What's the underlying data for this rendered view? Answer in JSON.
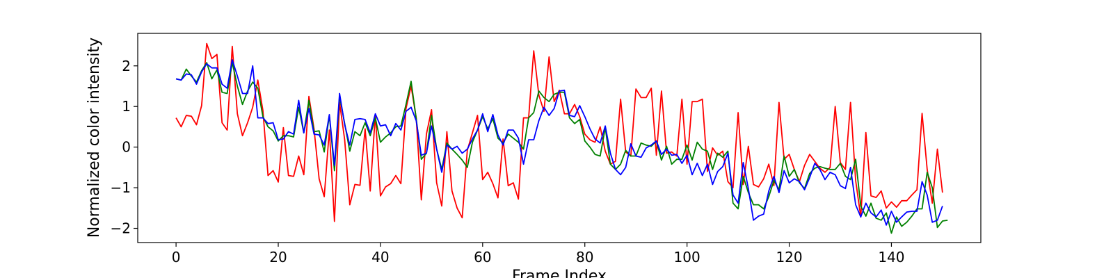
{
  "chart_data": {
    "type": "line",
    "title": "",
    "xlabel": "Frame Index",
    "ylabel": "Normalized color intensity",
    "xlim": [
      -7.5,
      157.5
    ],
    "ylim": [
      -2.35,
      2.8
    ],
    "xticks": [
      0,
      20,
      40,
      60,
      80,
      100,
      120,
      140
    ],
    "yticks": [
      -2,
      -1,
      0,
      1,
      2
    ],
    "grid": false,
    "legend": false,
    "series": [
      {
        "color": "#ff0000",
        "values": [
          0.72,
          0.5,
          0.78,
          0.76,
          0.55,
          1.02,
          2.55,
          2.18,
          2.28,
          0.6,
          0.42,
          2.48,
          0.82,
          0.28,
          0.6,
          0.98,
          1.65,
          0.9,
          -0.7,
          -0.58,
          -0.86,
          0.48,
          -0.7,
          -0.72,
          -0.22,
          -0.68,
          1.25,
          0.45,
          -0.78,
          -1.22,
          0.42,
          -1.83,
          1.1,
          0.18,
          -1.42,
          -0.92,
          -0.94,
          0.45,
          -1.08,
          0.8,
          -1.2,
          -0.98,
          -0.9,
          -0.7,
          -0.9,
          0.95,
          1.5,
          0.72,
          -1.3,
          0.32,
          0.92,
          -0.88,
          -1.45,
          0.38,
          -1.08,
          -1.5,
          -1.74,
          -0.08,
          0.35,
          0.78,
          -0.8,
          -0.62,
          -0.9,
          -1.25,
          0.2,
          -0.95,
          -0.88,
          -1.28,
          0.72,
          0.72,
          2.37,
          1.28,
          0.88,
          2.22,
          1.12,
          1.4,
          0.82,
          0.82,
          1.05,
          0.75,
          0.32,
          0.18,
          0.12,
          0.5,
          -0.1,
          -0.42,
          -0.35,
          1.18,
          -0.12,
          -0.22,
          1.43,
          1.22,
          1.22,
          1.45,
          -0.2,
          1.38,
          -0.15,
          -0.12,
          -0.22,
          1.18,
          -0.42,
          1.12,
          1.12,
          1.18,
          -0.6,
          -0.02,
          -0.2,
          -0.1,
          -0.85,
          -1.0,
          0.85,
          -0.92,
          0.02,
          -0.92,
          -0.98,
          -0.78,
          -0.42,
          -0.95,
          1.1,
          -0.3,
          -0.18,
          -0.55,
          -0.85,
          -0.45,
          -0.18,
          -0.35,
          -0.52,
          -0.62,
          -0.5,
          1.0,
          -0.38,
          -0.55,
          1.1,
          -0.82,
          -1.72,
          0.36,
          -1.2,
          -1.24,
          -1.08,
          -1.5,
          -1.35,
          -1.48,
          -1.32,
          -1.32,
          -1.18,
          -1.05,
          0.83,
          -0.55,
          -1.38,
          -0.05,
          -1.12
        ]
      },
      {
        "color": "#008000",
        "values": [
          1.68,
          1.65,
          1.92,
          1.75,
          1.6,
          1.88,
          2.08,
          1.68,
          1.9,
          1.35,
          1.32,
          2.08,
          1.5,
          1.05,
          1.38,
          1.6,
          1.45,
          0.75,
          0.5,
          0.4,
          0.15,
          0.28,
          0.28,
          0.25,
          0.98,
          0.35,
          1.15,
          0.38,
          0.4,
          -0.12,
          0.78,
          -0.58,
          1.25,
          0.58,
          -0.1,
          0.38,
          0.28,
          0.6,
          0.28,
          0.72,
          0.12,
          0.25,
          0.35,
          0.5,
          0.52,
          1.05,
          1.62,
          0.7,
          -0.3,
          -0.15,
          0.78,
          -0.05,
          -0.55,
          0.1,
          -0.05,
          -0.18,
          -0.32,
          -0.5,
          0.12,
          0.42,
          0.75,
          0.45,
          0.7,
          0.22,
          0.1,
          0.32,
          0.22,
          0.12,
          -0.05,
          0.72,
          0.85,
          1.38,
          1.22,
          1.12,
          1.3,
          1.35,
          1.35,
          0.72,
          0.58,
          0.68,
          0.15,
          0.0,
          -0.18,
          -0.22,
          0.48,
          -0.42,
          -0.55,
          -0.42,
          -0.08,
          -0.22,
          -0.22,
          0.1,
          0.05,
          0.02,
          0.15,
          -0.32,
          0.02,
          -0.42,
          -0.3,
          -0.3,
          0.05,
          -0.32,
          0.12,
          -0.05,
          -0.1,
          -0.55,
          -0.15,
          -0.25,
          -0.1,
          -1.38,
          -1.52,
          -0.72,
          -1.12,
          -1.42,
          -1.42,
          -1.52,
          -1.22,
          -0.82,
          -1.05,
          -0.22,
          -0.72,
          -0.55,
          -0.88,
          -1.02,
          -0.65,
          -0.52,
          -0.48,
          -0.52,
          -0.55,
          -0.55,
          -0.4,
          -0.72,
          -0.8,
          -0.3,
          -1.45,
          -1.7,
          -1.38,
          -1.75,
          -1.8,
          -1.62,
          -2.12,
          -1.72,
          -1.95,
          -1.85,
          -1.7,
          -1.52,
          -1.52,
          -0.62,
          -1.0,
          -1.98,
          -1.82,
          -1.8
        ]
      },
      {
        "color": "#0000ff",
        "values": [
          1.68,
          1.65,
          1.8,
          1.78,
          1.55,
          1.85,
          2.05,
          1.95,
          1.95,
          1.55,
          1.45,
          2.15,
          1.75,
          1.32,
          1.32,
          2.0,
          0.72,
          0.72,
          0.58,
          0.6,
          0.18,
          0.2,
          0.38,
          0.32,
          1.15,
          0.35,
          0.95,
          0.32,
          0.3,
          0.05,
          0.8,
          -0.45,
          1.32,
          0.55,
          0.05,
          0.68,
          0.7,
          0.68,
          0.35,
          0.82,
          0.52,
          0.55,
          0.28,
          0.58,
          0.42,
          0.88,
          0.98,
          0.65,
          -0.2,
          -0.15,
          0.52,
          -0.05,
          -0.62,
          0.05,
          -0.05,
          0.02,
          -0.15,
          -0.05,
          0.2,
          0.42,
          0.82,
          0.38,
          0.8,
          0.3,
          0.05,
          0.42,
          0.42,
          0.22,
          -0.42,
          0.18,
          0.18,
          0.65,
          0.98,
          0.78,
          0.95,
          1.38,
          1.4,
          0.78,
          0.75,
          1.02,
          0.75,
          0.45,
          0.2,
          0.1,
          0.52,
          -0.15,
          -0.55,
          -0.68,
          -0.5,
          0.08,
          -0.22,
          -0.25,
          -0.02,
          0.05,
          0.15,
          -0.18,
          -0.05,
          -0.2,
          -0.18,
          -0.4,
          -0.2,
          -0.68,
          -0.4,
          -0.7,
          -0.42,
          -0.92,
          -0.6,
          -0.48,
          -0.15,
          -1.18,
          -1.38,
          -0.38,
          -1.02,
          -1.8,
          -1.7,
          -1.65,
          -1.08,
          -0.72,
          -1.12,
          -0.58,
          -0.88,
          -0.78,
          -0.85,
          -1.05,
          -0.75,
          -0.4,
          -0.55,
          -0.8,
          -0.62,
          -0.68,
          -0.95,
          -1.02,
          -0.5,
          -1.42,
          -1.72,
          -1.38,
          -1.62,
          -1.72,
          -1.55,
          -1.92,
          -1.58,
          -1.85,
          -1.72,
          -1.6,
          -1.58,
          -1.58,
          -0.85,
          -1.18,
          -1.85,
          -1.8,
          -1.45
        ]
      }
    ]
  }
}
